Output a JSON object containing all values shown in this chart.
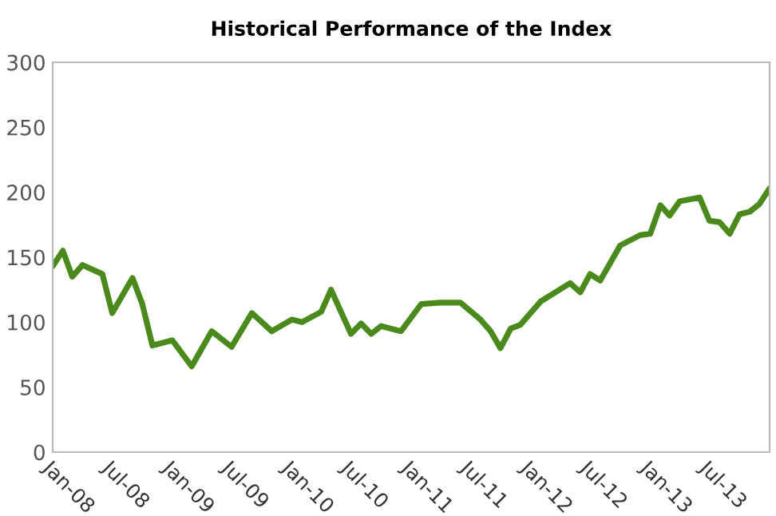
{
  "chart_data": {
    "type": "line",
    "title": "Historical Performance of the Index",
    "x": [
      "2008-01",
      "2008-02",
      "2008-03",
      "2008-04",
      "2008-06",
      "2008-07",
      "2008-09",
      "2008-10",
      "2008-11",
      "2009-01",
      "2009-03",
      "2009-05",
      "2009-07",
      "2009-09",
      "2009-11",
      "2010-01",
      "2010-02",
      "2010-04",
      "2010-05",
      "2010-07",
      "2010-08",
      "2010-09",
      "2010-10",
      "2010-12",
      "2011-02",
      "2011-04",
      "2011-06",
      "2011-08",
      "2011-09",
      "2011-10",
      "2011-11",
      "2011-12",
      "2012-02",
      "2012-05",
      "2012-06",
      "2012-07",
      "2012-08",
      "2012-10",
      "2012-12",
      "2013-01",
      "2013-02",
      "2013-03",
      "2013-04",
      "2013-06",
      "2013-07",
      "2013-08",
      "2013-09",
      "2013-10",
      "2013-11",
      "2013-12",
      "2014-01"
    ],
    "series": [
      {
        "color": "#4a8a1c",
        "values": [
          143,
          155,
          135,
          144,
          137,
          107,
          134,
          114,
          82,
          86,
          66,
          93,
          81,
          107,
          93,
          102,
          100,
          108,
          125,
          91,
          99,
          91,
          97,
          93,
          114,
          115,
          115,
          102,
          93,
          80,
          95,
          98,
          116,
          130,
          123,
          137,
          132,
          159,
          167,
          168,
          190,
          182,
          193,
          196,
          178,
          177,
          168,
          183,
          185,
          191,
          203
        ]
      }
    ],
    "xlim": [
      "2008-01",
      "2014-01"
    ],
    "xticks": [
      {
        "value": "2008-01",
        "label": "Jan-08"
      },
      {
        "value": "2008-07",
        "label": "Jul-08"
      },
      {
        "value": "2009-01",
        "label": "Jan-09"
      },
      {
        "value": "2009-07",
        "label": "Jul-09"
      },
      {
        "value": "2010-01",
        "label": "Jan-10"
      },
      {
        "value": "2010-07",
        "label": "Jul-10"
      },
      {
        "value": "2011-01",
        "label": "Jan-11"
      },
      {
        "value": "2011-07",
        "label": "Jul-11"
      },
      {
        "value": "2012-01",
        "label": "Jan-12"
      },
      {
        "value": "2012-07",
        "label": "Jul-12"
      },
      {
        "value": "2013-01",
        "label": "Jan-13"
      },
      {
        "value": "2013-07",
        "label": "Jul-13"
      }
    ],
    "ylim": [
      0,
      300
    ],
    "yticks": [
      0,
      50,
      100,
      150,
      200,
      250,
      300
    ],
    "grid": false,
    "marker": "none",
    "line_style": "solid",
    "legend": false
  }
}
